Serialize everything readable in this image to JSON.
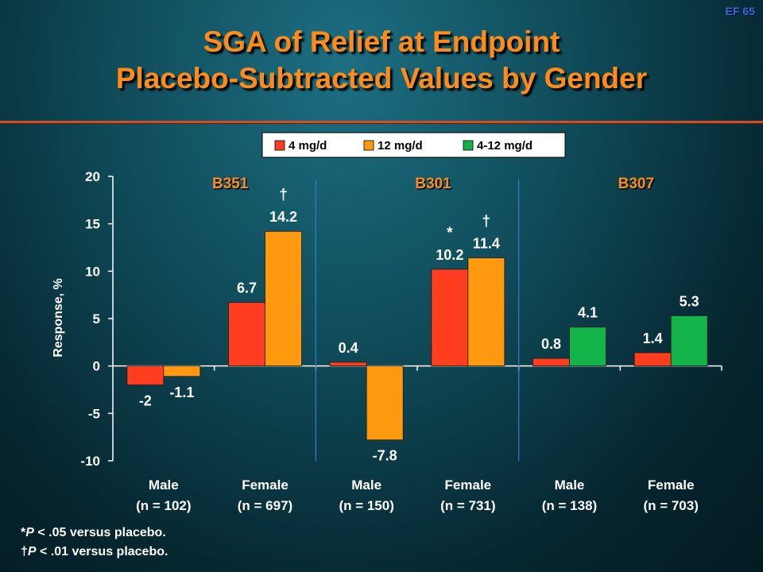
{
  "slide_id": "EF 65",
  "title_line1": "SGA of Relief at Endpoint",
  "title_line2": "Placebo-Subtracted Values by Gender",
  "colors": {
    "4mg": "#ff3d1f",
    "12mg": "#ff9a10",
    "4-12mg": "#14b44a",
    "title": "#ff8c1a"
  },
  "chart_data": {
    "type": "bar",
    "ylabel": "Response, %",
    "ylim": [
      -10,
      20
    ],
    "yticks": [
      20,
      15,
      10,
      5,
      0,
      -5,
      -10
    ],
    "legend": [
      "4 mg/d",
      "12 mg/d",
      "4-12 mg/d"
    ],
    "legend_position": "top-center",
    "studies": [
      "B351",
      "B301",
      "B307"
    ],
    "categories": [
      {
        "study": "B351",
        "label": "Male",
        "n": "(n = 102)",
        "bars": [
          {
            "series": "4 mg/d",
            "value": -2,
            "label": "-2"
          },
          {
            "series": "12 mg/d",
            "value": -1.1,
            "label": "-1.1"
          }
        ],
        "mark": ""
      },
      {
        "study": "B351",
        "label": "Female",
        "n": "(n = 697)",
        "bars": [
          {
            "series": "4 mg/d",
            "value": 6.7,
            "label": "6.7"
          },
          {
            "series": "12 mg/d",
            "value": 14.2,
            "label": "14.2",
            "mark": "†"
          }
        ]
      },
      {
        "study": "B301",
        "label": "Male",
        "n": "(n = 150)",
        "bars": [
          {
            "series": "4 mg/d",
            "value": 0.4,
            "label": "0.4"
          },
          {
            "series": "12 mg/d",
            "value": -7.8,
            "label": "-7.8"
          }
        ]
      },
      {
        "study": "B301",
        "label": "Female",
        "n": "(n = 731)",
        "bars": [
          {
            "series": "4 mg/d",
            "value": 10.2,
            "label": "10.2",
            "mark": "*"
          },
          {
            "series": "12 mg/d",
            "value": 11.4,
            "label": "11.4",
            "mark": "†"
          }
        ]
      },
      {
        "study": "B307",
        "label": "Male",
        "n": "(n = 138)",
        "bars": [
          {
            "series": "4 mg/d",
            "value": 0.8,
            "label": "0.8"
          },
          {
            "series": "4-12 mg/d",
            "value": 4.1,
            "label": "4.1"
          }
        ]
      },
      {
        "study": "B307",
        "label": "Female",
        "n": "(n = 703)",
        "bars": [
          {
            "series": "4 mg/d",
            "value": 1.4,
            "label": "1.4"
          },
          {
            "series": "4-12 mg/d",
            "value": 5.3,
            "label": "5.3"
          }
        ]
      }
    ]
  },
  "footnotes": [
    {
      "symbol": "*",
      "p": "P",
      "text": " < .05 versus placebo."
    },
    {
      "symbol": "†",
      "p": "P",
      "text": " < .01 versus placebo."
    }
  ]
}
